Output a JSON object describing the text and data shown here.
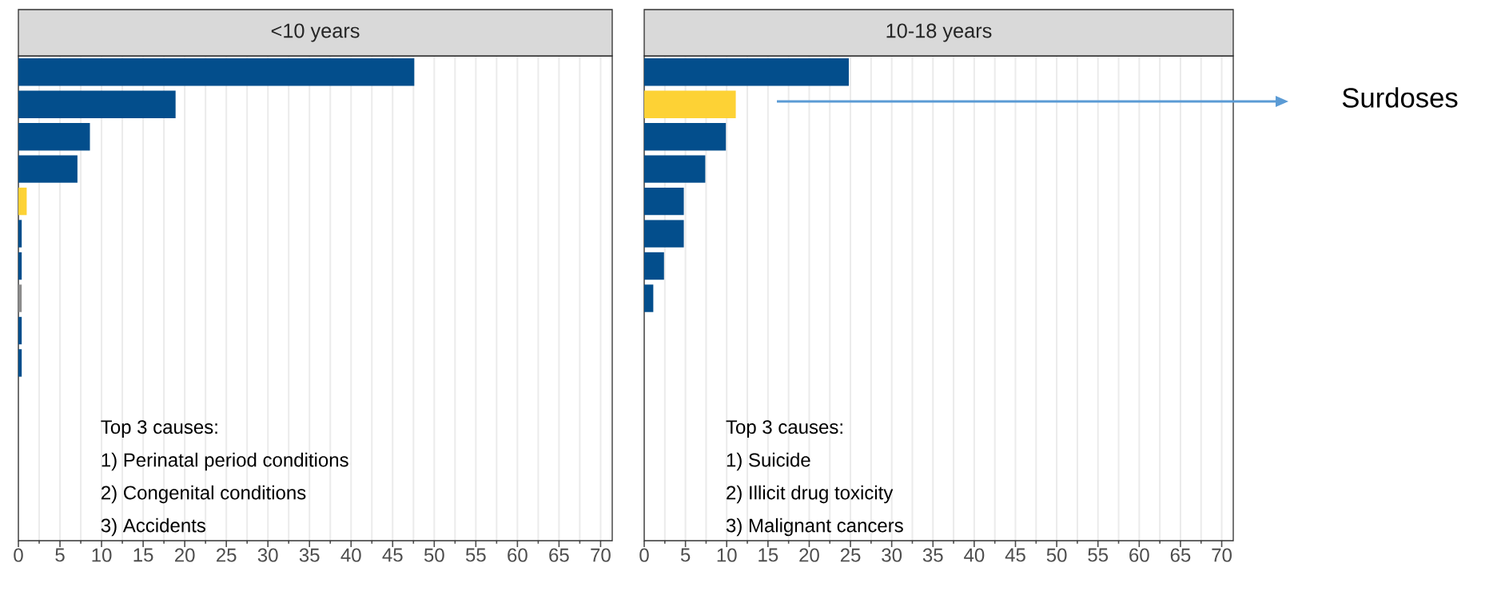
{
  "chart_data": [
    {
      "type": "bar",
      "orientation": "horizontal",
      "title": "<10 years",
      "categories": [
        null,
        null,
        null,
        null,
        null,
        null,
        null,
        null,
        null,
        null,
        null,
        null,
        null,
        null,
        null
      ],
      "values": [
        47.6,
        18.9,
        8.6,
        7.1,
        1.0,
        0.4,
        0.4,
        0.4,
        0.4,
        0.4,
        null,
        null,
        null,
        null,
        null
      ],
      "colors": [
        "#034e8c",
        "#034e8c",
        "#034e8c",
        "#034e8c",
        "#fdd235",
        "#034e8c",
        "#034e8c",
        "#8c8c8c",
        "#034e8c",
        "#034e8c",
        "#034e8c",
        "#034e8c",
        "#034e8c",
        "#034e8c",
        "#034e8c"
      ],
      "xlim": [
        0,
        71.4
      ],
      "xticks": [
        0,
        5,
        10,
        15,
        20,
        25,
        30,
        35,
        40,
        45,
        50,
        55,
        60,
        65,
        70
      ],
      "grid": "x",
      "annotations": [
        "Top 3 causes:",
        "1) Perinatal period conditions",
        "2) Congenital conditions",
        "3) Accidents"
      ]
    },
    {
      "type": "bar",
      "orientation": "horizontal",
      "title": "10-18 years",
      "categories": [
        null,
        null,
        null,
        null,
        null,
        null,
        null,
        null,
        null,
        null,
        null,
        null,
        null,
        null,
        null
      ],
      "values": [
        24.8,
        11.1,
        9.9,
        7.4,
        4.8,
        4.8,
        2.4,
        1.1,
        null,
        null,
        null,
        null,
        null,
        null,
        null
      ],
      "colors": [
        "#034e8c",
        "#fdd235",
        "#034e8c",
        "#034e8c",
        "#034e8c",
        "#034e8c",
        "#034e8c",
        "#034e8c",
        "#034e8c",
        "#034e8c",
        "#034e8c",
        "#034e8c",
        "#034e8c",
        "#034e8c",
        "#034e8c"
      ],
      "xlim": [
        0,
        71.4
      ],
      "xticks": [
        0,
        5,
        10,
        15,
        20,
        25,
        30,
        35,
        40,
        45,
        50,
        55,
        60,
        65,
        70
      ],
      "grid": "x",
      "annotations": [
        "Top 3 causes:",
        "1) Suicide",
        "2) Illicit drug toxicity",
        "3) Malignant cancers",
        "Surdoses"
      ]
    }
  ]
}
